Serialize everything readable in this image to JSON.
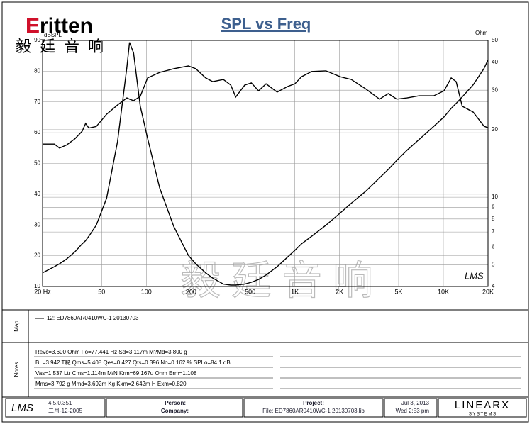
{
  "chart_data": {
    "type": "line",
    "title": "SPL vs Freq",
    "ylabel": "dBSPL",
    "y2label": "Ohm",
    "legend": "12: ED7860AR0410WC-1   20130703",
    "xlog": true,
    "y2log": true,
    "grid": true,
    "x": [
      20,
      24,
      26,
      29,
      33,
      37,
      39,
      41,
      46,
      54,
      64,
      74,
      77,
      82,
      91,
      102,
      123,
      153,
      192,
      215,
      251,
      280,
      330,
      370,
      400,
      460,
      510,
      570,
      640,
      760,
      890,
      1000,
      1110,
      1300,
      1620,
      2020,
      2400,
      2990,
      3720,
      4260,
      4860,
      5700,
      6870,
      8620,
      10100,
      11300,
      12200,
      13400,
      15900,
      18800,
      20000
    ],
    "series": [
      {
        "color": "#000000",
        "values": [
          56.3,
          56.3,
          55,
          56,
          58,
          60.5,
          63,
          61.5,
          62,
          66,
          69,
          71.3,
          70.9,
          70.4,
          71.8,
          77.8,
          79.6,
          80.8,
          81.7,
          80.8,
          77.8,
          76.6,
          77.3,
          75.5,
          71.6,
          75.5,
          76.2,
          73.6,
          75.9,
          73.2,
          75,
          75.9,
          78.2,
          79.9,
          80.1,
          78.2,
          77.3,
          74.3,
          70.9,
          72.7,
          70.9,
          71.3,
          72,
          72,
          73.6,
          77.8,
          76.6,
          68.6,
          66.7,
          62.1,
          61.6
        ]
      },
      {
        "color": "#000000",
        "axis": "y2",
        "values": [
          4.6,
          4.9,
          5.05,
          5.3,
          5.7,
          6.2,
          6.4,
          6.7,
          7.5,
          9.9,
          17.7,
          38,
          49,
          44,
          25.5,
          18.3,
          11,
          7.4,
          5.5,
          5.05,
          4.6,
          4.36,
          4.1,
          4.06,
          4.06,
          4.1,
          4.18,
          4.3,
          4.5,
          4.9,
          5.4,
          5.8,
          6.2,
          6.7,
          7.5,
          8.5,
          9.4,
          10.6,
          12.2,
          13.3,
          14.6,
          16.2,
          18.1,
          20.7,
          22.8,
          24.9,
          26.2,
          28,
          31.7,
          37.5,
          40.9
        ]
      }
    ],
    "xlim": [
      20,
      20000
    ],
    "xticks": [
      {
        "value": 20,
        "label": "20 Hz"
      },
      50,
      100,
      200,
      500,
      {
        "value": 1000,
        "label": "1K"
      },
      {
        "value": 2000,
        "label": "2K"
      },
      {
        "value": 5000,
        "label": "5K"
      },
      {
        "value": 10000,
        "label": "10K"
      },
      {
        "value": 20000,
        "label": "20K"
      }
    ],
    "ylim": [
      10,
      90
    ],
    "yticks": [
      10,
      20,
      30,
      40,
      50,
      60,
      70,
      80,
      90
    ],
    "y2lim": [
      4,
      50
    ],
    "y2ticks": [
      4,
      5,
      6,
      7,
      8,
      9,
      10,
      20,
      30,
      40,
      50
    ]
  },
  "logo": {
    "initial": "E",
    "word": "ritten",
    "chinese": "毅廷音响"
  },
  "watermark": "毅 廷 音 响",
  "plot_mark": "LMS",
  "panels": {
    "map": "Map",
    "notes": "Notes"
  },
  "notes": [
    "Revc=3.600 Ohm  Fo=77.441 Hz  Sd=3.117m M?Md=3.800 g",
    "BL=3.942 T糙  Qms=5.408  Qes=0.427  Qts=0.396  No=0.162 %  SPLo=84.1 dB",
    "Vas=1.537 Ltr  Cms=1.114m M/N  Krm=69.167u Ohm  Erm=1.108",
    "Mms=3.792 g  Mmd=3.692m Kg  Kxm=2.642m H  Exm=0.820"
  ],
  "footer": {
    "logo": "LMS",
    "version": "4.5.0.351",
    "date": "二月-12-2005",
    "person": "Person:",
    "company": "Company:",
    "project": "Project:",
    "file": "File: ED7860AR0410WC-1  20130703.lib",
    "day": "Jul  3, 2013",
    "time": "Wed  2:53 pm",
    "brand": "LINEARX",
    "brand_sub": "S Y S T E M S"
  }
}
